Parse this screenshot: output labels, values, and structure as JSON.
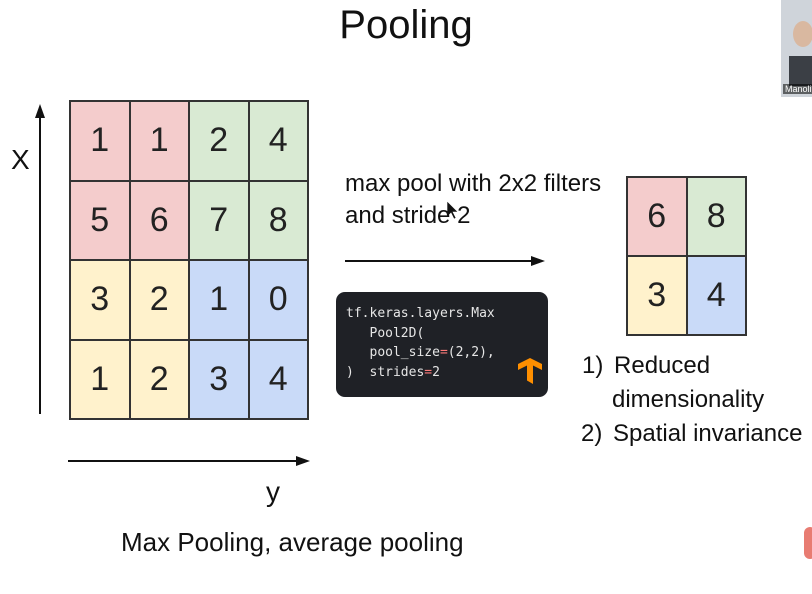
{
  "title": "Pooling",
  "input_grid": {
    "rows": [
      [
        "1",
        "1",
        "2",
        "4"
      ],
      [
        "5",
        "6",
        "7",
        "8"
      ],
      [
        "3",
        "2",
        "1",
        "0"
      ],
      [
        "1",
        "2",
        "3",
        "4"
      ]
    ],
    "quadrant_colors": {
      "top_left": "#f4cccc",
      "top_right": "#d9ead3",
      "bottom_left": "#fff2cc",
      "bottom_right": "#c9daf8"
    }
  },
  "axis": {
    "x_label": "X",
    "y_label": "y"
  },
  "operation": {
    "line1": "max pool with 2x2 filters",
    "line2": "and stride 2"
  },
  "code": {
    "lines": [
      "tf.keras.layers.Max",
      "   Pool2D(",
      "   pool_size=(2,2),",
      ")  strides=2"
    ],
    "logo_icon": "tensorflow-logo-icon",
    "logo_color": "#ff8f00"
  },
  "output_grid": {
    "rows": [
      [
        "6",
        "8"
      ],
      [
        "3",
        "4"
      ]
    ],
    "colors": [
      "#f4cccc",
      "#d9ead3",
      "#fff2cc",
      "#c9daf8"
    ]
  },
  "benefits": [
    {
      "num": "1)",
      "text": "Reduced",
      "text2": "dimensionality"
    },
    {
      "num": "2)",
      "text": "Spatial invariance"
    }
  ],
  "footer": "Max Pooling, average pooling",
  "participant": {
    "name": "Manoli"
  }
}
